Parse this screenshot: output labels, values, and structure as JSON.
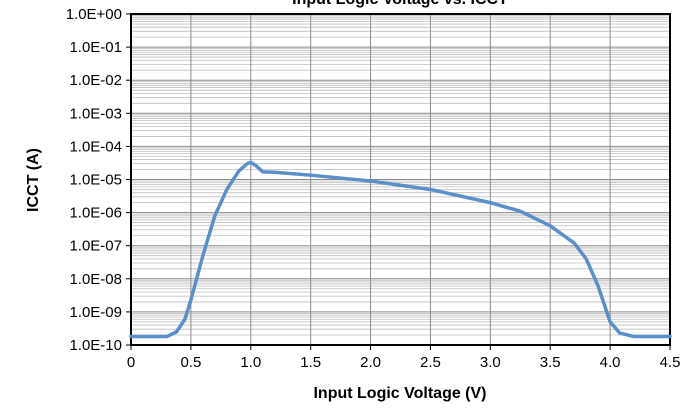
{
  "chart_data": {
    "type": "line",
    "title": "Input Logic Voltage vs. ICCT",
    "x_label": "Input Logic Voltage (V)",
    "y_label": "ICCT (A)",
    "log_y": true,
    "grid": true,
    "minor_grid": true,
    "xlim": [
      0,
      4.5
    ],
    "ylim": [
      1e-10,
      1
    ],
    "xticks": [
      0,
      0.5,
      {
        "value": 1,
        "label": "1.0"
      },
      1.5,
      {
        "value": 2,
        "label": "2.0"
      },
      2.5,
      {
        "value": 3,
        "label": "3.0"
      },
      3.5,
      {
        "value": 4,
        "label": "4.0"
      },
      4.5
    ],
    "yticks": [
      {
        "value": 1e-10,
        "label": "1.0E-10"
      },
      {
        "value": 1e-09,
        "label": "1.0E-09"
      },
      {
        "value": 1e-08,
        "label": "1.0E-08"
      },
      {
        "value": 1e-07,
        "label": "1.0E-07"
      },
      {
        "value": 1e-06,
        "label": "1.0E-06"
      },
      {
        "value": 1e-05,
        "label": "1.0E-05"
      },
      {
        "value": 0.0001,
        "label": "1.0E-04"
      },
      {
        "value": 0.001,
        "label": "1.0E-03"
      },
      {
        "value": 0.01,
        "label": "1.0E-02"
      },
      {
        "value": 0.1,
        "label": "1.0E-01"
      },
      {
        "value": 1,
        "label": "1.0E+00"
      }
    ],
    "x": [
      0,
      0.3,
      0.38,
      0.45,
      0.5,
      0.6,
      0.7,
      0.8,
      0.9,
      0.97,
      1.0,
      1.05,
      1.1,
      1.2,
      1.5,
      2.0,
      2.5,
      3.0,
      3.25,
      3.5,
      3.7,
      3.8,
      3.9,
      4.0,
      4.08,
      4.2,
      4.5
    ],
    "series": [
      {
        "name": "ICCT",
        "color": "#5b8fc9",
        "values": [
          1.8e-10,
          1.8e-10,
          2.5e-10,
          6e-10,
          2.3e-09,
          5e-08,
          8e-07,
          5e-06,
          1.8e-05,
          3e-05,
          3.3e-05,
          2.5e-05,
          1.7e-05,
          1.65e-05,
          1.35e-05,
          9e-06,
          5e-06,
          2e-06,
          1.1e-06,
          4e-07,
          1.2e-07,
          4e-08,
          6e-09,
          5e-10,
          2.3e-10,
          1.8e-10,
          1.8e-10
        ]
      }
    ]
  }
}
